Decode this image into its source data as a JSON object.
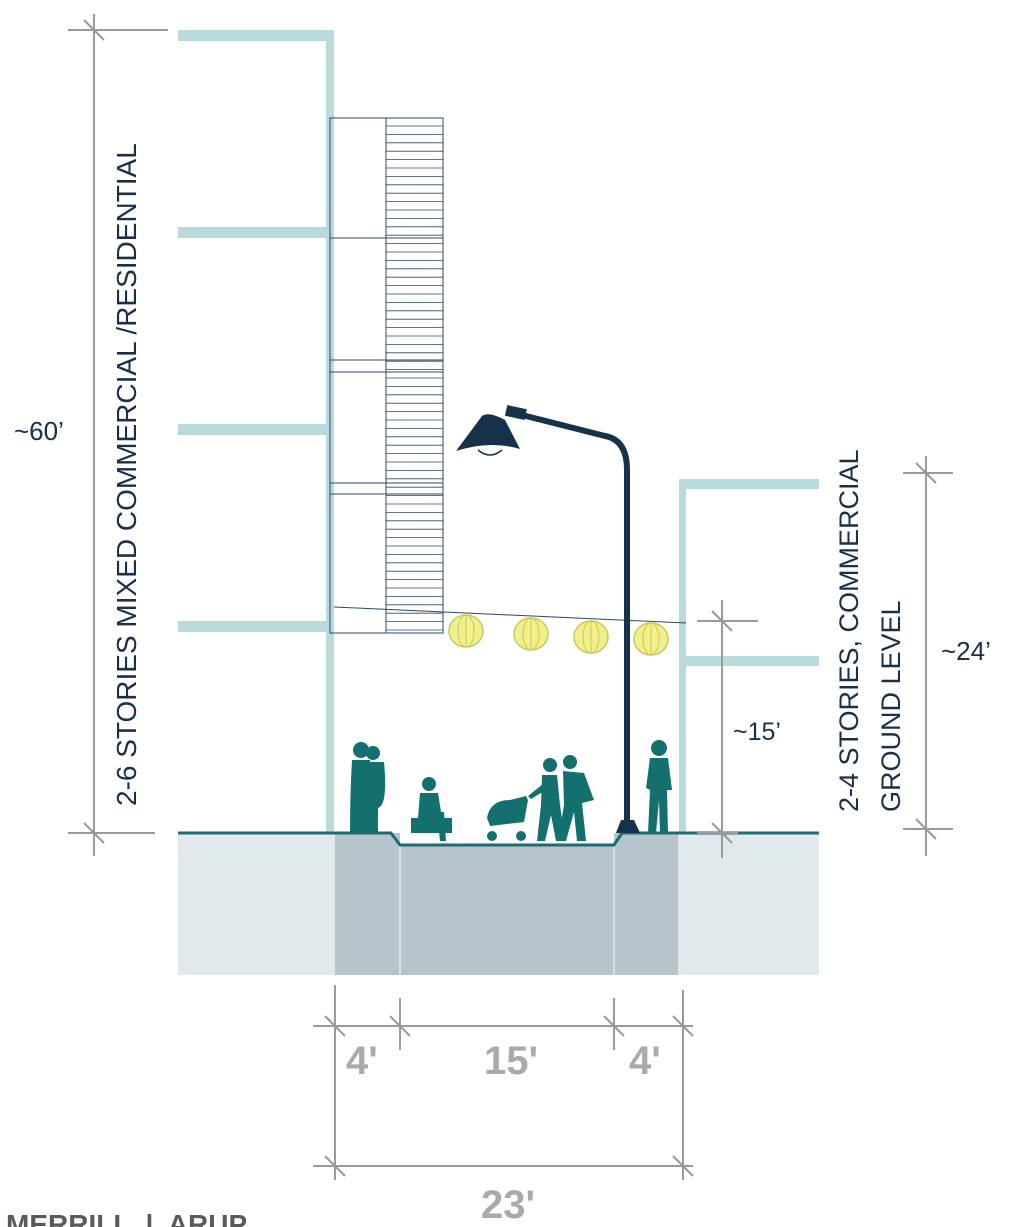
{
  "labels": {
    "left_building": "2-6 STORIES MIXED COMMERCIAL /RESIDENTIAL",
    "right_building_line1": "2-4 STORIES, COMMERCIAL",
    "right_building_line2": "GROUND LEVEL"
  },
  "dimensions": {
    "left_height": "~60’",
    "right_height": "~24’",
    "ground_floor_height": "~15’",
    "sidewalk_left": "4'",
    "roadway": "15'",
    "sidewalk_right": "4'",
    "total_width": "23'"
  },
  "footer": {
    "credit": "MERRILL  |  ARUP"
  },
  "colors": {
    "building_line": "#b9dadd",
    "ground_line": "#1f6b74",
    "ground_fill": "#e2e9ed",
    "sidewalk_fill": "#b5c5cb",
    "pedestrian": "#13706e",
    "lamp": "#16324a",
    "lantern": "#f1f08a",
    "dimension": "#9a9a9a",
    "text_dark": "#1a3048"
  }
}
